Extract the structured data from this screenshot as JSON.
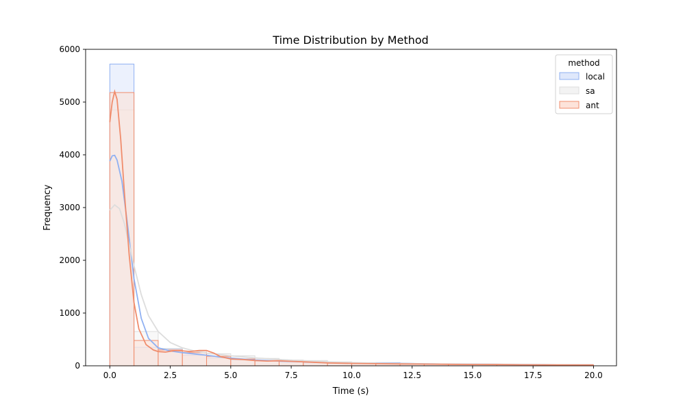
{
  "chart_data": {
    "type": "histogram",
    "title": "Time Distribution by Method",
    "xlabel": "Time (s)",
    "ylabel": "Frequency",
    "xlim": [
      -1,
      20.95
    ],
    "ylim": [
      0,
      6000
    ],
    "xticks": [
      0.0,
      2.5,
      5.0,
      7.5,
      10.0,
      12.5,
      15.0,
      17.5,
      20.0
    ],
    "xtick_labels": [
      "0.0",
      "2.5",
      "5.0",
      "7.5",
      "10.0",
      "12.5",
      "15.0",
      "17.5",
      "20.0"
    ],
    "yticks": [
      0,
      1000,
      2000,
      3000,
      4000,
      5000,
      6000
    ],
    "ytick_labels": [
      "0",
      "1000",
      "2000",
      "3000",
      "4000",
      "5000",
      "6000"
    ],
    "grid": false,
    "legend": {
      "title": "method",
      "position": "top-right"
    },
    "bin_edges": [
      0,
      1,
      2,
      3,
      4,
      5,
      6,
      7,
      8,
      9,
      10,
      11,
      12,
      13,
      14,
      15,
      16,
      17,
      18,
      19,
      20
    ],
    "series": [
      {
        "name": "local",
        "line_color": "#8fb0f2",
        "fill_color": "#dce6fb",
        "counts": [
          5720,
          350,
          320,
          200,
          150,
          110,
          90,
          70,
          55,
          45,
          40,
          60,
          35,
          30,
          28,
          25,
          22,
          20,
          18,
          15
        ],
        "kde": [
          [
            0.0,
            3880
          ],
          [
            0.1,
            3980
          ],
          [
            0.2,
            3990
          ],
          [
            0.3,
            3900
          ],
          [
            0.5,
            3500
          ],
          [
            0.7,
            2800
          ],
          [
            1.0,
            1650
          ],
          [
            1.3,
            900
          ],
          [
            1.6,
            520
          ],
          [
            2.0,
            340
          ],
          [
            2.5,
            280
          ],
          [
            3.0,
            250
          ],
          [
            3.5,
            225
          ],
          [
            4.0,
            200
          ],
          [
            4.5,
            170
          ],
          [
            5.0,
            145
          ],
          [
            6.0,
            110
          ],
          [
            7.0,
            90
          ],
          [
            8.0,
            75
          ],
          [
            9.0,
            62
          ],
          [
            10.0,
            52
          ],
          [
            11.0,
            50
          ],
          [
            12.0,
            48
          ],
          [
            13.0,
            38
          ],
          [
            14.0,
            32
          ],
          [
            15.0,
            30
          ],
          [
            16.0,
            28
          ],
          [
            17.0,
            25
          ],
          [
            18.0,
            22
          ],
          [
            19.0,
            20
          ],
          [
            20.0,
            18
          ]
        ]
      },
      {
        "name": "sa",
        "line_color": "#dddddd",
        "fill_color": "#f2f2f2",
        "counts": [
          4850,
          650,
          330,
          280,
          230,
          190,
          140,
          110,
          100,
          75,
          60,
          50,
          40,
          35,
          30,
          28,
          25,
          22,
          20,
          18
        ],
        "kde": [
          [
            0.0,
            2950
          ],
          [
            0.2,
            3050
          ],
          [
            0.4,
            2980
          ],
          [
            0.6,
            2700
          ],
          [
            0.8,
            2300
          ],
          [
            1.0,
            1900
          ],
          [
            1.3,
            1350
          ],
          [
            1.6,
            950
          ],
          [
            2.0,
            650
          ],
          [
            2.5,
            440
          ],
          [
            3.0,
            340
          ],
          [
            3.5,
            280
          ],
          [
            4.0,
            240
          ],
          [
            5.0,
            190
          ],
          [
            6.0,
            150
          ],
          [
            7.0,
            120
          ],
          [
            8.0,
            95
          ],
          [
            9.0,
            75
          ],
          [
            10.0,
            60
          ],
          [
            11.0,
            50
          ],
          [
            12.0,
            45
          ],
          [
            13.0,
            38
          ],
          [
            14.0,
            33
          ],
          [
            15.0,
            30
          ],
          [
            16.0,
            27
          ],
          [
            17.0,
            25
          ],
          [
            18.0,
            22
          ],
          [
            19.0,
            20
          ],
          [
            20.0,
            18
          ]
        ]
      },
      {
        "name": "ant",
        "line_color": "#f08c6c",
        "fill_color": "#fde0d6",
        "counts": [
          5180,
          480,
          300,
          250,
          180,
          130,
          100,
          85,
          70,
          55,
          45,
          40,
          35,
          30,
          27,
          25,
          22,
          20,
          18,
          15
        ],
        "kde": [
          [
            0.0,
            4620
          ],
          [
            0.1,
            5000
          ],
          [
            0.2,
            5200
          ],
          [
            0.3,
            5050
          ],
          [
            0.45,
            4300
          ],
          [
            0.6,
            3300
          ],
          [
            0.8,
            2100
          ],
          [
            1.0,
            1200
          ],
          [
            1.2,
            700
          ],
          [
            1.5,
            400
          ],
          [
            1.8,
            300
          ],
          [
            2.0,
            270
          ],
          [
            2.3,
            260
          ],
          [
            2.7,
            290
          ],
          [
            3.0,
            285
          ],
          [
            3.3,
            270
          ],
          [
            3.7,
            290
          ],
          [
            4.0,
            290
          ],
          [
            4.3,
            240
          ],
          [
            4.6,
            170
          ],
          [
            5.0,
            130
          ],
          [
            5.5,
            120
          ],
          [
            6.0,
            100
          ],
          [
            6.5,
            90
          ],
          [
            7.0,
            95
          ],
          [
            7.5,
            85
          ],
          [
            8.0,
            75
          ],
          [
            9.0,
            55
          ],
          [
            10.0,
            45
          ],
          [
            11.0,
            40
          ],
          [
            12.0,
            35
          ],
          [
            13.0,
            32
          ],
          [
            14.0,
            28
          ],
          [
            15.0,
            25
          ],
          [
            16.0,
            23
          ],
          [
            17.0,
            20
          ],
          [
            18.0,
            18
          ],
          [
            19.0,
            16
          ],
          [
            20.0,
            15
          ]
        ]
      }
    ]
  }
}
